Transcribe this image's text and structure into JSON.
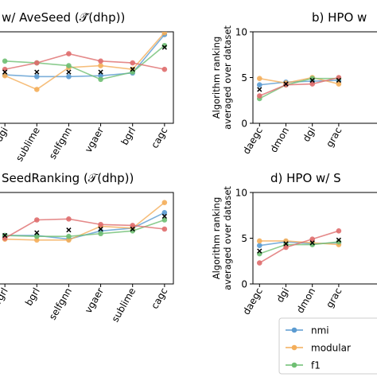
{
  "chart_data": [
    {
      "type": "line",
      "title": "w/ AveSeed (𝒯̂(dhp))",
      "categories": [
        "dgi",
        "sublime",
        "selfgnn",
        "vgaer",
        "bgrl",
        "cagc"
      ],
      "yticks": [],
      "ylabel": "",
      "ylim": [
        0,
        10
      ],
      "series": [
        {
          "name": "nmi",
          "values": [
            5.3,
            5.1,
            5.1,
            5.2,
            5.5,
            9.7
          ]
        },
        {
          "name": "modularity",
          "values": [
            5.2,
            3.7,
            6.1,
            6.3,
            5.9,
            9.9
          ]
        },
        {
          "name": "f1",
          "values": [
            6.8,
            6.6,
            6.3,
            4.8,
            5.6,
            8.5
          ]
        },
        {
          "name": "",
          "values": [
            5.9,
            6.6,
            7.6,
            6.8,
            6.6,
            5.9
          ]
        },
        {
          "name": "avg",
          "values": [
            5.6,
            5.6,
            5.6,
            5.6,
            5.9,
            8.3
          ]
        }
      ]
    },
    {
      "type": "line",
      "title": "b) HPO w",
      "categories": [
        "daegc",
        "dmon",
        "dgi",
        "grac"
      ],
      "yticks": [
        0,
        5,
        10
      ],
      "ylabel": "Algorithm ranking\naveraged over dataset",
      "ylim": [
        0,
        10
      ],
      "series": [
        {
          "name": "nmi",
          "values": [
            4.2,
            4.5,
            4.6,
            4.7
          ]
        },
        {
          "name": "modularity",
          "values": [
            4.9,
            4.4,
            5.0,
            4.3
          ]
        },
        {
          "name": "f1",
          "values": [
            2.7,
            4.2,
            4.9,
            4.9
          ]
        },
        {
          "name": "",
          "values": [
            3.0,
            4.2,
            4.3,
            5.0
          ]
        },
        {
          "name": "avg",
          "values": [
            3.7,
            4.3,
            4.7,
            4.7
          ]
        }
      ]
    },
    {
      "type": "line",
      "title": "SeedRanking (𝒯(dhp))",
      "categories": [
        "vgrl",
        "bgrl",
        "selfgnn",
        "vgaer",
        "sublime",
        "cagc"
      ],
      "yticks": [],
      "ylabel": "",
      "ylim": [
        0,
        10
      ],
      "series": [
        {
          "name": "nmi",
          "values": [
            5.3,
            5.3,
            4.9,
            5.8,
            6.1,
            7.8
          ]
        },
        {
          "name": "modularity",
          "values": [
            4.9,
            4.8,
            4.8,
            6.3,
            6.1,
            8.9
          ]
        },
        {
          "name": "f1",
          "values": [
            5.3,
            5.2,
            5.2,
            5.5,
            5.8,
            7.0
          ]
        },
        {
          "name": "",
          "values": [
            5.0,
            7.0,
            7.1,
            6.5,
            6.4,
            6.0
          ]
        },
        {
          "name": "avg",
          "values": [
            5.3,
            5.6,
            5.9,
            6.0,
            6.0,
            7.4
          ]
        }
      ]
    },
    {
      "type": "line",
      "title": "d) HPO w/ S",
      "categories": [
        "daegc",
        "dgi",
        "dmon",
        "grac"
      ],
      "yticks": [
        0,
        5,
        10
      ],
      "ylabel": "Algorithm ranking\naveraged over dataset",
      "ylim": [
        0,
        10
      ],
      "series": [
        {
          "name": "nmi",
          "values": [
            4.2,
            4.6,
            4.4,
            4.5
          ]
        },
        {
          "name": "modularity",
          "values": [
            4.7,
            4.7,
            4.5,
            4.3
          ]
        },
        {
          "name": "f1",
          "values": [
            3.3,
            4.3,
            4.3,
            4.6
          ]
        },
        {
          "name": "",
          "values": [
            2.3,
            4.0,
            4.9,
            5.8
          ]
        },
        {
          "name": "avg",
          "values": [
            3.6,
            4.4,
            4.5,
            4.8
          ]
        }
      ]
    }
  ],
  "legend": {
    "placement": "bottom-right",
    "entries": [
      "nmi",
      "modular",
      "f1"
    ]
  },
  "colors": {
    "nmi": "#5b9bd1",
    "modularity": "#f4ae5a",
    "f1": "#6fbf73",
    "fourth": "#df6d6d",
    "avg": "#000000"
  }
}
